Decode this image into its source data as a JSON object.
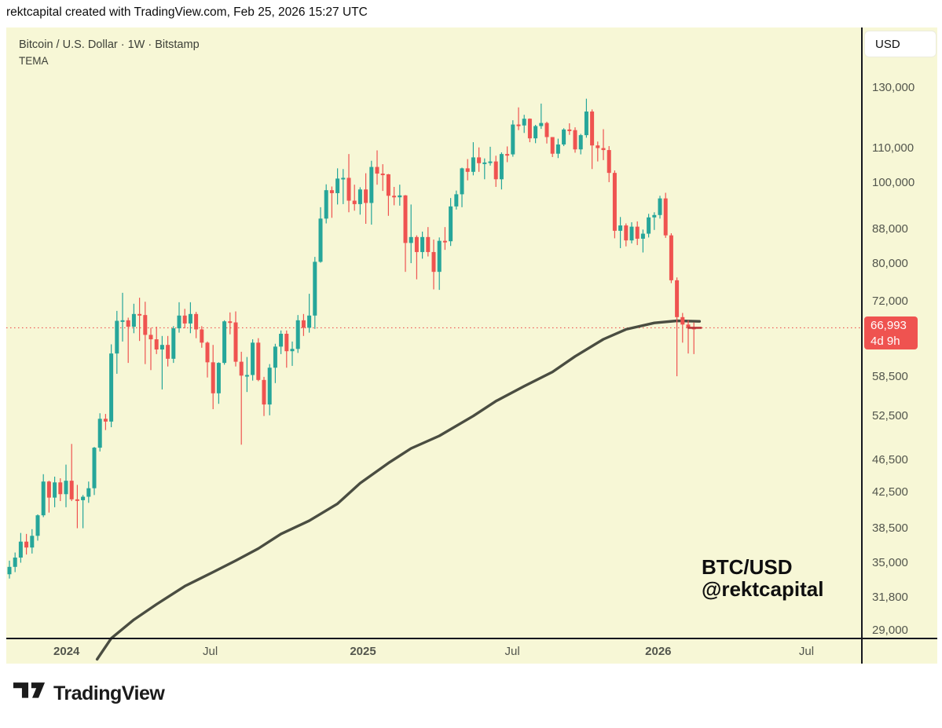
{
  "header": {
    "title": "rektcapital created with TradingView.com, Feb 25, 2026 15:27 UTC"
  },
  "legend": {
    "symbol": "Bitcoin / U.S. Dollar · 1W · Bitstamp",
    "indicator": "TEMA"
  },
  "price_axis": {
    "currency_button": "USD",
    "ticks": [
      {
        "price": 130000,
        "label": "130,000"
      },
      {
        "price": 110000,
        "label": "110,000"
      },
      {
        "price": 100000,
        "label": "100,000"
      },
      {
        "price": 88000,
        "label": "88,000"
      },
      {
        "price": 80000,
        "label": "80,000"
      },
      {
        "price": 72000,
        "label": "72,000"
      },
      {
        "price": 58500,
        "label": "58,500"
      },
      {
        "price": 52500,
        "label": "52,500"
      },
      {
        "price": 46500,
        "label": "46,500"
      },
      {
        "price": 42500,
        "label": "42,500"
      },
      {
        "price": 38500,
        "label": "38,500"
      },
      {
        "price": 35000,
        "label": "35,000"
      },
      {
        "price": 31800,
        "label": "31,800"
      },
      {
        "price": 29000,
        "label": "29,000"
      }
    ]
  },
  "time_axis": {
    "ticks": [
      {
        "label": "2024",
        "i": 10.1,
        "bold": true
      },
      {
        "label": "Jul",
        "i": 35.5,
        "bold": false
      },
      {
        "label": "2025",
        "i": 62.5,
        "bold": true
      },
      {
        "label": "Jul",
        "i": 88.9,
        "bold": false
      },
      {
        "label": "2026",
        "i": 114.7,
        "bold": true
      },
      {
        "label": "Jul",
        "i": 140.9,
        "bold": false
      }
    ]
  },
  "current_price": {
    "value": 66993,
    "label": "66,993",
    "countdown": "4d 9h"
  },
  "watermark": {
    "line1": "BTC/USD",
    "line2": "@rektcapital"
  },
  "footer": {
    "brand": "TradingView"
  },
  "colors": {
    "up": "#26a69a",
    "down": "#ef5350",
    "tema": "#4a4d41",
    "price_line": "#ef5350",
    "close_dash": "#b9393a",
    "label_bg": "#ef5350",
    "chart_bg": "#f7f7d6"
  },
  "chart_data": {
    "type": "candlestick",
    "symbol": "BTC/USD",
    "interval": "1W",
    "exchange": "Bitstamp",
    "scale": "log",
    "y_range": [
      29000,
      134000
    ],
    "last_price": 66993,
    "candles": [
      [
        33900,
        35200,
        33500,
        34600
      ],
      [
        34600,
        36000,
        34100,
        35500
      ],
      [
        35500,
        38000,
        35000,
        37100
      ],
      [
        37100,
        37900,
        35800,
        36500
      ],
      [
        36500,
        38400,
        35900,
        37700
      ],
      [
        37700,
        40000,
        37200,
        39900
      ],
      [
        39900,
        44700,
        39700,
        43800
      ],
      [
        43800,
        43900,
        40200,
        41900
      ],
      [
        41900,
        44400,
        40800,
        43700
      ],
      [
        43700,
        44200,
        41500,
        42300
      ],
      [
        42300,
        45900,
        40800,
        43900
      ],
      [
        43900,
        48600,
        41500,
        41700
      ],
      [
        41700,
        43400,
        38500,
        41600
      ],
      [
        41600,
        42200,
        38500,
        42000
      ],
      [
        42000,
        43800,
        41300,
        43000
      ],
      [
        43000,
        48200,
        42200,
        48100
      ],
      [
        48100,
        52900,
        47600,
        52100
      ],
      [
        52100,
        52800,
        50500,
        51700
      ],
      [
        51700,
        64000,
        50900,
        62400
      ],
      [
        62400,
        70200,
        59000,
        68300
      ],
      [
        68300,
        73800,
        64500,
        68400
      ],
      [
        68400,
        68900,
        60800,
        67200
      ],
      [
        67200,
        71600,
        66000,
        69600
      ],
      [
        69600,
        72800,
        64600,
        69400
      ],
      [
        69400,
        72000,
        60600,
        65700
      ],
      [
        65700,
        67000,
        59600,
        64900
      ],
      [
        64900,
        67200,
        62300,
        63100
      ],
      [
        63100,
        65500,
        56500,
        63900
      ],
      [
        63900,
        65500,
        60200,
        61500
      ],
      [
        61500,
        67300,
        60800,
        66900
      ],
      [
        66900,
        71900,
        66100,
        69300
      ],
      [
        69300,
        70600,
        66900,
        67800
      ],
      [
        67800,
        71900,
        66000,
        69600
      ],
      [
        69600,
        70000,
        65100,
        66700
      ],
      [
        66700,
        67300,
        63400,
        64300
      ],
      [
        64300,
        64500,
        58400,
        60900
      ],
      [
        60900,
        63900,
        53500,
        55900
      ],
      [
        55900,
        60900,
        54300,
        60800
      ],
      [
        60800,
        68400,
        60500,
        68200
      ],
      [
        68200,
        69900,
        65800,
        68000
      ],
      [
        68000,
        70100,
        60200,
        61000
      ],
      [
        61000,
        62700,
        48500,
        58700
      ],
      [
        58700,
        61800,
        56100,
        58800
      ],
      [
        58800,
        64900,
        57900,
        64300
      ],
      [
        64300,
        65100,
        57800,
        58000
      ],
      [
        58000,
        58500,
        52500,
        54200
      ],
      [
        54200,
        60600,
        52600,
        60000
      ],
      [
        60000,
        64100,
        57500,
        63600
      ],
      [
        63600,
        66500,
        62300,
        65900
      ],
      [
        65900,
        66500,
        60000,
        62800
      ],
      [
        62800,
        64500,
        60300,
        63200
      ],
      [
        63200,
        69400,
        62500,
        68400
      ],
      [
        68400,
        69600,
        65500,
        67000
      ],
      [
        67000,
        73600,
        66100,
        69300
      ],
      [
        69300,
        81500,
        66800,
        80400
      ],
      [
        80400,
        93500,
        80200,
        90600
      ],
      [
        90600,
        99600,
        89400,
        98000
      ],
      [
        98000,
        99000,
        90800,
        97200
      ],
      [
        97200,
        104100,
        94200,
        101200
      ],
      [
        101200,
        103900,
        94300,
        101400
      ],
      [
        101400,
        108300,
        92200,
        95200
      ],
      [
        95200,
        99500,
        92600,
        94300
      ],
      [
        94300,
        98800,
        91600,
        98200
      ],
      [
        98200,
        102700,
        89300,
        94600
      ],
      [
        94600,
        106300,
        89100,
        104500
      ],
      [
        104500,
        109400,
        99500,
        102600
      ],
      [
        102600,
        105300,
        97800,
        102400
      ],
      [
        102400,
        102500,
        91300,
        96500
      ],
      [
        96500,
        98900,
        94000,
        96100
      ],
      [
        96100,
        99500,
        93900,
        96600
      ],
      [
        96600,
        96700,
        78200,
        84700
      ],
      [
        84700,
        94200,
        80100,
        86100
      ],
      [
        86100,
        86500,
        76600,
        82600
      ],
      [
        82600,
        87400,
        81100,
        86100
      ],
      [
        86100,
        88500,
        81600,
        82600
      ],
      [
        82600,
        85500,
        74500,
        78200
      ],
      [
        78200,
        86000,
        74400,
        85200
      ],
      [
        85200,
        88500,
        83100,
        85100
      ],
      [
        85100,
        95900,
        84000,
        93700
      ],
      [
        93700,
        97900,
        92900,
        96900
      ],
      [
        96900,
        104300,
        93500,
        104100
      ],
      [
        104100,
        106800,
        100700,
        103100
      ],
      [
        103100,
        111900,
        102100,
        107300
      ],
      [
        107300,
        110300,
        103100,
        105600
      ],
      [
        105600,
        107000,
        101000,
        105800
      ],
      [
        105800,
        110500,
        104900,
        106100
      ],
      [
        106100,
        107800,
        98900,
        101000
      ],
      [
        101000,
        108800,
        98200,
        108300
      ],
      [
        108300,
        110600,
        105900,
        108200
      ],
      [
        108200,
        118900,
        107500,
        117500
      ],
      [
        117500,
        123200,
        115700,
        117200
      ],
      [
        117200,
        120700,
        114800,
        119400
      ],
      [
        119400,
        119500,
        111900,
        113100
      ],
      [
        113100,
        117400,
        111600,
        117000
      ],
      [
        117000,
        124500,
        116100,
        118000
      ],
      [
        118000,
        118400,
        111500,
        113500
      ],
      [
        113500,
        113500,
        107400,
        108400
      ],
      [
        108400,
        113000,
        107100,
        111200
      ],
      [
        111200,
        116300,
        110700,
        115900
      ],
      [
        115900,
        117900,
        114200,
        115700
      ],
      [
        115700,
        116600,
        108700,
        109700
      ],
      [
        109700,
        114500,
        108200,
        114100
      ],
      [
        114100,
        126200,
        113300,
        121800
      ],
      [
        121800,
        122500,
        103900,
        110900
      ],
      [
        110900,
        112100,
        106100,
        110100
      ],
      [
        110100,
        116000,
        106500,
        109500
      ],
      [
        109500,
        110700,
        100200,
        102800
      ],
      [
        102800,
        103500,
        85800,
        87600
      ],
      [
        87600,
        91000,
        83500,
        88900
      ],
      [
        88900,
        89400,
        83900,
        85300
      ],
      [
        85300,
        89700,
        84600,
        88600
      ],
      [
        88600,
        89900,
        84200,
        85700
      ],
      [
        85700,
        87900,
        82500,
        86900
      ],
      [
        86900,
        91800,
        86000,
        90900
      ],
      [
        90900,
        92200,
        87800,
        91500
      ],
      [
        91500,
        96500,
        90600,
        95800
      ],
      [
        95800,
        97300,
        85900,
        86500
      ],
      [
        86500,
        87000,
        75800,
        76400
      ],
      [
        76400,
        77000,
        58600,
        69000
      ],
      [
        69000,
        69800,
        64300,
        67600
      ],
      [
        67600,
        68400,
        62400,
        67000
      ],
      [
        67000,
        68000,
        62300,
        66993
      ]
    ],
    "indicator": {
      "name": "TEMA",
      "points": [
        [
          15.5,
          26800
        ],
        [
          18,
          28400
        ],
        [
          22,
          29900
        ],
        [
          26,
          31200
        ],
        [
          31,
          32800
        ],
        [
          36,
          34100
        ],
        [
          40,
          35200
        ],
        [
          44,
          36400
        ],
        [
          48,
          37900
        ],
        [
          53,
          39300
        ],
        [
          58,
          41200
        ],
        [
          62,
          43600
        ],
        [
          67,
          46100
        ],
        [
          71,
          48000
        ],
        [
          76,
          49700
        ],
        [
          82,
          52500
        ],
        [
          86,
          54700
        ],
        [
          91,
          57000
        ],
        [
          96,
          59300
        ],
        [
          100,
          61900
        ],
        [
          105,
          64900
        ],
        [
          109,
          66700
        ],
        [
          114,
          67900
        ],
        [
          118,
          68300
        ],
        [
          122,
          68200
        ]
      ]
    }
  }
}
